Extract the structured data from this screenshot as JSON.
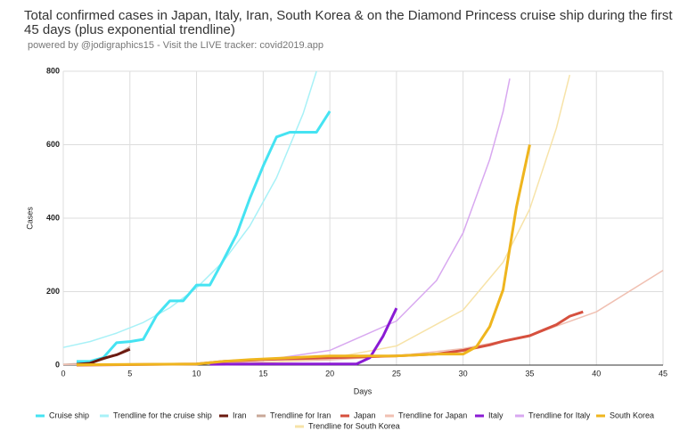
{
  "chart_data": {
    "type": "line",
    "title": "Total confirmed cases in Japan, Italy, Iran, South Korea & on the Diamond Princess cruise ship during the first 45 days (plus exponential trendline)",
    "subtitle": "powered by @jodigraphics15 - Visit the LIVE tracker: covid2019.app",
    "x_label": "Days",
    "y_label": "Cases",
    "xlim": [
      0,
      45
    ],
    "xticks": [
      0,
      5,
      10,
      15,
      20,
      25,
      30,
      35,
      40,
      45
    ],
    "ylim": [
      0,
      800
    ],
    "yticks": [
      0,
      200,
      400,
      600,
      800
    ],
    "grid": true,
    "series": [
      {
        "name": "Cruise ship",
        "color": "#45e3f2",
        "x": [
          1,
          2,
          3,
          4,
          5,
          6,
          7,
          8,
          9,
          10,
          11,
          12,
          13,
          14,
          15,
          16,
          17,
          18,
          19,
          20
        ],
        "values": [
          10,
          10,
          20,
          61,
          64,
          70,
          135,
          175,
          175,
          218,
          218,
          285,
          355,
          454,
          542,
          621,
          634,
          634,
          634,
          691
        ]
      },
      {
        "name": "Trendline for the cruise ship",
        "color": "#a8f1f7",
        "x": [
          0,
          2,
          4,
          6,
          8,
          10,
          12,
          14,
          16,
          18,
          19
        ],
        "values": [
          48,
          64,
          87,
          116,
          156,
          210,
          282,
          379,
          510,
          685,
          800
        ]
      },
      {
        "name": "Iran",
        "color": "#6b1a10",
        "x": [
          1,
          2,
          3,
          4,
          5
        ],
        "values": [
          2,
          5,
          18,
          28,
          43
        ]
      },
      {
        "name": "Trendline for Iran",
        "color": "#c9a898",
        "x": [
          0,
          1,
          2,
          3,
          4,
          5
        ],
        "values": [
          2,
          4,
          8,
          15,
          28,
          50
        ]
      },
      {
        "name": "Japan",
        "color": "#d6503e",
        "x": [
          1,
          10,
          12,
          15,
          20,
          25,
          28,
          30,
          32,
          33,
          35,
          36,
          37,
          38,
          39
        ],
        "values": [
          0,
          3,
          10,
          15,
          20,
          25,
          30,
          40,
          55,
          65,
          80,
          95,
          110,
          133,
          145
        ]
      },
      {
        "name": "Trendline for Japan",
        "color": "#f0c0b2",
        "x": [
          0,
          5,
          10,
          15,
          20,
          25,
          30,
          35,
          40,
          45
        ],
        "values": [
          1.4,
          2.4,
          4.4,
          7.9,
          14,
          25,
          45,
          80,
          145,
          258
        ]
      },
      {
        "name": "Italy",
        "color": "#8a1bd4",
        "x": [
          11,
          15,
          20,
          22,
          23,
          24,
          25
        ],
        "values": [
          2,
          3,
          3,
          3,
          20,
          79,
          155
        ]
      },
      {
        "name": "Trendline for Italy",
        "color": "#d8a8f0",
        "x": [
          10,
          15,
          20,
          25,
          28,
          30,
          32,
          33,
          33.5
        ],
        "values": [
          4.4,
          13,
          40,
          120,
          230,
          360,
          560,
          690,
          780
        ]
      },
      {
        "name": "South Korea",
        "color": "#efb51e",
        "x": [
          1,
          10,
          12,
          14,
          17,
          20,
          25,
          28,
          30,
          31,
          32,
          33,
          34,
          35
        ],
        "values": [
          1,
          3,
          10,
          15,
          20,
          25,
          25,
          30,
          30,
          50,
          105,
          205,
          430,
          600
        ]
      },
      {
        "name": "Trendline for South Korea",
        "color": "#f7e3a8",
        "x": [
          15,
          20,
          25,
          30,
          33,
          35,
          37,
          38
        ],
        "values": [
          6.5,
          18.5,
          52,
          150,
          280,
          425,
          645,
          790
        ]
      }
    ]
  }
}
